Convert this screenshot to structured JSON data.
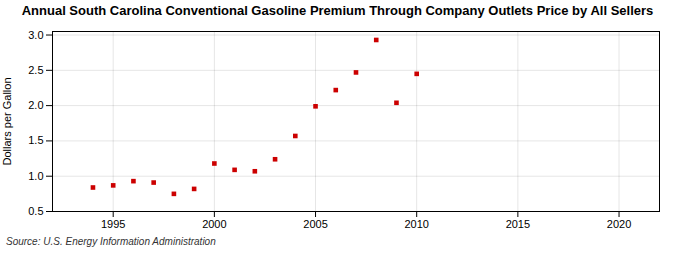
{
  "chart_data": {
    "type": "scatter",
    "title": "Annual South Carolina Conventional Gasoline Premium Through Company Outlets Price by All Sellers",
    "ylabel": "Dollars per Gallon",
    "annotations": [
      "Source: U.S. Energy Information Administration"
    ],
    "x": [
      1994,
      1995,
      1996,
      1997,
      1998,
      1999,
      2000,
      2001,
      2002,
      2003,
      2004,
      2005,
      2006,
      2007,
      2008,
      2009,
      2010
    ],
    "values": [
      0.84,
      0.87,
      0.93,
      0.91,
      0.75,
      0.82,
      1.18,
      1.09,
      1.07,
      1.24,
      1.57,
      1.99,
      2.22,
      2.47,
      2.93,
      2.04,
      2.45
    ],
    "color": "#cc0000",
    "marker": "square",
    "xlim": [
      1992,
      2022
    ],
    "ylim": [
      0.5,
      3.05
    ],
    "xticks": [
      1995,
      2000,
      2005,
      2010,
      2015,
      2020
    ],
    "yticks": [
      0.5,
      {
        "value": 1.0,
        "label": "1.0"
      },
      1.5,
      {
        "value": 2.0,
        "label": "2.0"
      },
      2.5,
      {
        "value": 3.0,
        "label": "3.0"
      }
    ],
    "grid": true
  }
}
